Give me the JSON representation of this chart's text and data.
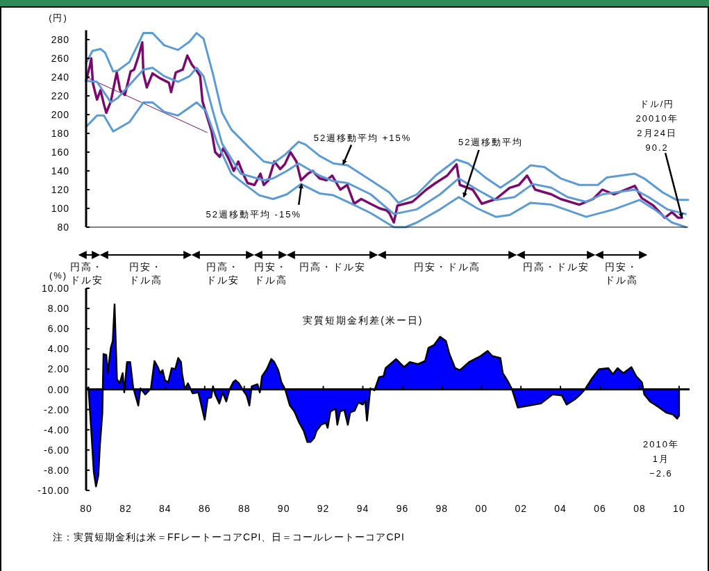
{
  "chart_data": [
    {
      "type": "line",
      "ylabel": "(円)",
      "tick_labels": "y",
      "xlim": [
        1980,
        2010.46
      ],
      "ylim": [
        80,
        290
      ],
      "yticks": [
        80,
        100,
        120,
        140,
        160,
        180,
        200,
        220,
        240,
        260,
        280
      ],
      "series": [
        {
          "color": "#7a0a6e",
          "x": [
            1980,
            1980.2,
            1980.26,
            1980.34,
            1980.43,
            1980.55,
            1980.73,
            1980.9,
            1981.02,
            1981.25,
            1981.55,
            1981.72,
            1981.96,
            1982.25,
            1982.43,
            1982.66,
            1982.84,
            1982.9,
            1983.07,
            1983.36,
            1983.72,
            1984.19,
            1984.3,
            1984.54,
            1984.89,
            1985.12,
            1985.36,
            1985.59,
            1985.77,
            1985.89,
            1986.06,
            1986.35,
            1986.53,
            1986.76,
            1986.94,
            1987.23,
            1987.47,
            1987.7,
            1987.94,
            1988.17,
            1988.52,
            1988.82,
            1988.99,
            1989.23,
            1989.52,
            1989.82,
            1990.05,
            1990.34,
            1990.64,
            1990.87,
            1991.22,
            1991.46,
            1991.81,
            1992.16,
            1992.45,
            1992.86,
            1993.21,
            1993.56,
            1993.92,
            1994.38,
            1994.85,
            1995.2,
            1995.34,
            1995.57,
            1995.75,
            1996.51,
            1997.21,
            1997.68,
            1998.27,
            1998.74,
            1998.91,
            1999.56,
            2000.02,
            2000.73,
            2001.43,
            2001.9,
            2002.31,
            2002.72,
            2003.54,
            2004.01,
            2004.95,
            2005.65,
            2006.12,
            2006.71,
            2007.29,
            2007.76,
            2008.11,
            2008.7,
            2009.28,
            2009.64,
            2009.95,
            2010.15
          ],
          "values": [
            236,
            253,
            260,
            234,
            226,
            216,
            226,
            211,
            202,
            214,
            245,
            226,
            221,
            246,
            248,
            263,
            277,
            244,
            229,
            244,
            239,
            234,
            224,
            245,
            248,
            263,
            253,
            247,
            241,
            214,
            202,
            182,
            160,
            155,
            164,
            152,
            140,
            150,
            137,
            127,
            125,
            137,
            125,
            130,
            150,
            142,
            147,
            160,
            150,
            130,
            137,
            140,
            132,
            130,
            135,
            120,
            125,
            105,
            110,
            105,
            100,
            98,
            95,
            85,
            103,
            107,
            120,
            127,
            135,
            147,
            125,
            120,
            105,
            110,
            122,
            125,
            135,
            120,
            115,
            110,
            104,
            110,
            120,
            115,
            120,
            124,
            111,
            103,
            90,
            96,
            90,
            90.2
          ]
        },
        {
          "color": "#7a0a6e",
          "x": [
            1980,
            1986.12
          ],
          "values": [
            240,
            181
          ]
        },
        {
          "color": "#5b9bd5",
          "x": [
            1980,
            1980.32,
            1980.73,
            1980.96,
            1981.37,
            1981.61,
            1982.19,
            1982.9,
            1983.36,
            1983.95,
            1984.65,
            1985.24,
            1985.59,
            1985.94,
            1986.41,
            1986.88,
            1987.35,
            1987.82,
            1988.29,
            1988.99,
            1989.46,
            1990.05,
            1990.75,
            1991.1,
            1991.81,
            1992.51,
            1993.23,
            1994.4,
            1995.34,
            1995.8,
            1996.74,
            1997.68,
            1998.74,
            1999.32,
            2000.26,
            2000.96,
            2001.67,
            2002.49,
            2003.19,
            2004.01,
            2004.95,
            2005.89,
            2006.35,
            2007.76,
            2008.23,
            2009.17,
            2009.87,
            2010.46
          ],
          "values": [
            255,
            268,
            270,
            266,
            246,
            247,
            256,
            287,
            287,
            274,
            269,
            278,
            287,
            281,
            244,
            202,
            184,
            174,
            164,
            150,
            148,
            157,
            171,
            168,
            156,
            148,
            146,
            130,
            117,
            106,
            115,
            135,
            152,
            148,
            132,
            122,
            132,
            146,
            144,
            132,
            125,
            125,
            133,
            137,
            132,
            117,
            109,
            109
          ]
        },
        {
          "color": "#5b9bd5",
          "x": [
            1980,
            1980.55,
            1981.25,
            1981.61,
            1982.9,
            1983.36,
            1983.95,
            1984.65,
            1985.24,
            1985.59,
            1985.94,
            1986.41,
            1986.88,
            1987.82,
            1988.99,
            1989.46,
            1990.16,
            1990.75,
            1991.81,
            1992.51,
            1993.23,
            1994.4,
            1995.57,
            1996.74,
            1997.91,
            1998.85,
            1999.79,
            2000.73,
            2001.67,
            2002.6,
            2003.54,
            2004.36,
            2005.3,
            2006.12,
            2007.76,
            2008.46,
            2009.4,
            2010.34
          ],
          "values": [
            236,
            235,
            213,
            218,
            248,
            250,
            241,
            235,
            241,
            250,
            241,
            204,
            169,
            137,
            130,
            132,
            140,
            148,
            135,
            129,
            127,
            115,
            94,
            99,
            115,
            132,
            120,
            109,
            112,
            126,
            122,
            112,
            107,
            115,
            120,
            112,
            99,
            94
          ]
        },
        {
          "color": "#5b9bd5",
          "x": [
            1980,
            1980.55,
            1980.9,
            1981.37,
            1982.19,
            1982.9,
            1983.36,
            1983.95,
            1984.65,
            1985.59,
            1986.06,
            1986.65,
            1987.35,
            1987.82,
            1988.76,
            1989.46,
            1990.16,
            1990.87,
            1991.81,
            1992.51,
            1993.23,
            1994.4,
            1995.57,
            1996.16,
            1996.74,
            1997.91,
            1998.85,
            1999.79,
            2000.73,
            2001.43,
            2002.49,
            2003.54,
            2004.36,
            2005.3,
            2006.71,
            2008,
            2008.82,
            2009.64,
            2010.34
          ],
          "values": [
            187,
            199,
            199,
            182,
            192,
            213,
            213,
            203,
            199,
            213,
            204,
            169,
            137,
            129,
            114,
            110,
            115,
            126,
            116,
            114,
            107,
            95,
            80,
            80,
            85,
            99,
            112,
            100,
            91,
            93,
            106,
            104,
            98,
            91,
            99,
            109,
            98,
            85,
            80
          ]
        }
      ],
      "annotations": [
        {
          "text": "52週移動平均 +15%",
          "x": 1993.0,
          "y": 147
        },
        {
          "text": "52週移動平均",
          "x": 1999.1,
          "y": 112
        },
        {
          "text": "52週移動平均 -15%",
          "x": 1990.9,
          "y": 126
        },
        {
          "text": "ドル/円\n20010年\n2月24日\n90.2",
          "x": 2010.15,
          "y": 90.2
        },
        "円高・ドル安",
        "円安・ドル高",
        "円高・ドル安",
        "円安・ドル高",
        "円高・ドル安",
        "円安・ドル高",
        "円高・ドル安",
        "円安・ドル高"
      ]
    },
    {
      "type": "area",
      "ylabel": "(%)",
      "xlim": [
        1980,
        2010.46
      ],
      "ylim": [
        -10,
        10
      ],
      "xticks": [
        {
          "value": 1980,
          "label": "80"
        },
        {
          "value": 1982,
          "label": "82"
        },
        {
          "value": 1984,
          "label": "84"
        },
        {
          "value": 1986,
          "label": "86"
        },
        {
          "value": 1988,
          "label": "88"
        },
        {
          "value": 1990,
          "label": "90"
        },
        {
          "value": 1992,
          "label": "92"
        },
        {
          "value": 1994,
          "label": "94"
        },
        {
          "value": 1996,
          "label": "96"
        },
        {
          "value": 1998,
          "label": "98"
        },
        {
          "value": 2000,
          "label": "00"
        },
        {
          "value": 2002,
          "label": "02"
        },
        {
          "value": 2004,
          "label": "04"
        },
        {
          "value": 2006,
          "label": "06"
        },
        {
          "value": 2008,
          "label": "08"
        },
        {
          "value": 2010,
          "label": "10"
        }
      ],
      "yticks": [
        {
          "value": 10,
          "label": "10.00"
        },
        {
          "value": 8,
          "label": "8.00"
        },
        {
          "value": 6,
          "label": "6.00"
        },
        {
          "value": 4,
          "label": "4.00"
        },
        {
          "value": 2,
          "label": "2.00"
        },
        {
          "value": 0,
          "label": "0.00"
        },
        {
          "value": -2,
          "label": "-2.00"
        },
        {
          "value": -4,
          "label": "-4.00"
        },
        {
          "value": -6,
          "label": "-6.00"
        },
        {
          "value": -8,
          "label": "-8.00"
        },
        {
          "value": -10,
          "label": "-10.00"
        }
      ],
      "ref_lines": [
        {
          "axis": "y",
          "value": 0,
          "color": "#000000"
        }
      ],
      "series": [
        {
          "name": "実質短期金利差(米ー日)",
          "color": "#0000ff",
          "x": [
            1980,
            1980.12,
            1980.29,
            1980.39,
            1980.5,
            1980.62,
            1980.7,
            1980.82,
            1980.88,
            1981.02,
            1981.09,
            1981.25,
            1981.35,
            1981.44,
            1981.56,
            1981.7,
            1981.85,
            1981.93,
            1982.07,
            1982.23,
            1982.38,
            1982.64,
            1982.75,
            1982.99,
            1983.28,
            1983.46,
            1983.63,
            1983.75,
            1983.87,
            1983.99,
            1984.16,
            1984.33,
            1984.51,
            1984.66,
            1984.8,
            1984.86,
            1985,
            1985.15,
            1985.39,
            1985.68,
            1986,
            1986.15,
            1986.33,
            1986.42,
            1986.53,
            1986.74,
            1986.91,
            1987.09,
            1987.26,
            1987.44,
            1987.56,
            1987.73,
            1987.91,
            1988.12,
            1988.26,
            1988.38,
            1988.67,
            1988.79,
            1988.9,
            1989.14,
            1989.37,
            1989.52,
            1989.72,
            1989.88,
            1990.07,
            1990.31,
            1990.54,
            1990.78,
            1991.01,
            1991.19,
            1991.36,
            1991.54,
            1991.66,
            1991.89,
            1992.13,
            1992.22,
            1992.36,
            1992.62,
            1992.71,
            1992.85,
            1993.06,
            1993.24,
            1993.36,
            1993.59,
            1993.77,
            1994,
            1994.12,
            1994.21,
            1994.38,
            1994.59,
            1994.82,
            1995.05,
            1995.15,
            1995.68,
            1996.09,
            1996.38,
            1996.79,
            1997.15,
            1997.32,
            1997.61,
            1997.91,
            1998.2,
            1998.38,
            1998.67,
            1998.91,
            1999.38,
            1999.96,
            2000.31,
            2000.55,
            2000.96,
            2001.08,
            2001.31,
            2001.55,
            2001.84,
            2002.43,
            2003.01,
            2003.6,
            2004.07,
            2004.31,
            2004.72,
            2005.01,
            2005.24,
            2005.6,
            2005.95,
            2006.42,
            2006.65,
            2006.89,
            2007.18,
            2007.59,
            2007.83,
            2008.12,
            2008.24,
            2008.53,
            2009,
            2009.35,
            2009.7,
            2009.9,
            2010
          ],
          "values": [
            0,
            0.2,
            -5,
            -8.2,
            -9.6,
            -8.5,
            -5.5,
            -2.4,
            3.5,
            3.4,
            1.6,
            4.1,
            4.8,
            8.4,
            1,
            0.6,
            1.6,
            -0.3,
            2.7,
            2.7,
            0.2,
            -1.6,
            0.1,
            -0.5,
            0.1,
            2.8,
            2.2,
            1.6,
            1.9,
            0.9,
            0.7,
            2.1,
            2,
            3.1,
            2.7,
            1.5,
            0,
            0.6,
            -0.4,
            -0.3,
            -3,
            -0.9,
            -0.8,
            0.3,
            -0.5,
            -1.4,
            -0.3,
            -1.2,
            0,
            0.7,
            0.9,
            0.6,
            0,
            -0.6,
            -1.6,
            0.3,
            0.5,
            -0.3,
            1.3,
            2,
            3,
            2.7,
            1.9,
            0.7,
            0,
            -1.6,
            -2.2,
            -3.3,
            -4.1,
            -5.2,
            -5.2,
            -4.8,
            -4.1,
            -3.5,
            -3.3,
            -3.8,
            -2.2,
            -1.9,
            -3.5,
            -2.2,
            -2,
            -3.5,
            -2.3,
            -2.1,
            -1.3,
            -1.5,
            -1.1,
            -3.1,
            0.1,
            -0.1,
            1.2,
            1.3,
            2.1,
            3,
            2.2,
            2.7,
            2.5,
            2.8,
            4.1,
            4.4,
            5.2,
            4.8,
            3.5,
            2.1,
            1.9,
            2.7,
            3.3,
            3.8,
            3.3,
            3.1,
            1.6,
            0.9,
            0,
            -1.8,
            -1.6,
            -1.4,
            -0.5,
            -0.6,
            -1.5,
            -1,
            -0.5,
            0,
            1.1,
            2,
            2.1,
            1.5,
            2.1,
            1.6,
            2.2,
            1.3,
            0.7,
            -0.5,
            -1.2,
            -1.8,
            -2.3,
            -2.5,
            -2.9,
            -2.6
          ]
        }
      ],
      "annotations": [
        {
          "text": "2010年\n1月\n−2.6",
          "x": 2010,
          "y": -2.6
        },
        "注：実質短期金利は米＝FFレートーコアCPI、日＝コールレートーコアCPI"
      ]
    }
  ]
}
